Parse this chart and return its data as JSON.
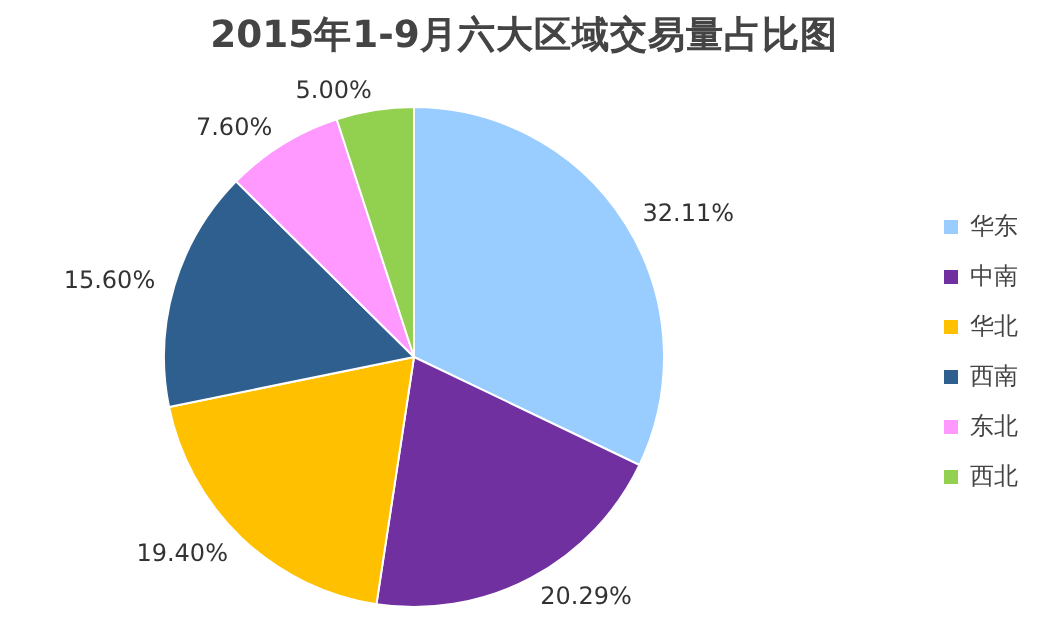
{
  "chart_data": {
    "type": "pie",
    "title": "2015年1-9月六大区域交易量占比图",
    "categories": [
      "华东",
      "中南",
      "华北",
      "西南",
      "东北",
      "西北"
    ],
    "values": [
      32.11,
      20.29,
      19.4,
      15.6,
      7.6,
      5.0
    ],
    "colors": [
      "#99ccff",
      "#7030a0",
      "#ffc000",
      "#2e5f8f",
      "#ff99ff",
      "#92d050"
    ],
    "value_labels": [
      "32.11%",
      "20.29%",
      "19.40%",
      "15.60%",
      "7.60%",
      "5.00%"
    ],
    "legend": "right"
  }
}
